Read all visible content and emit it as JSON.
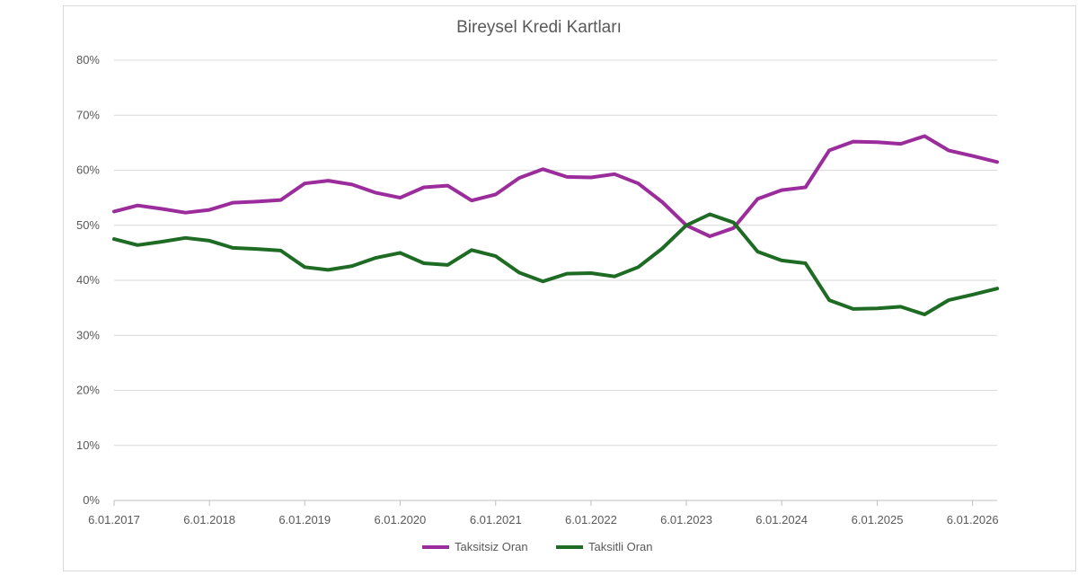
{
  "chart_data": {
    "type": "line",
    "title": "Bireysel Kredi Kartları",
    "xlabel": "",
    "ylabel": "",
    "ylim": [
      0,
      80
    ],
    "y_format": "percent",
    "y_ticks": [
      "0%",
      "10%",
      "20%",
      "30%",
      "40%",
      "50%",
      "60%",
      "70%",
      "80%"
    ],
    "x_range": [
      "2017-01-06",
      "2026-04-10"
    ],
    "x_ticks": [
      "6.01.2017",
      "6.01.2018",
      "6.01.2019",
      "6.01.2020",
      "6.01.2021",
      "6.01.2022",
      "6.01.2023",
      "6.01.2024",
      "6.01.2025",
      "6.01.2026"
    ],
    "grid": true,
    "legend_position": "bottom",
    "x": [
      "2017-01-06",
      "2017-04-06",
      "2017-07-06",
      "2017-10-06",
      "2018-01-06",
      "2018-04-06",
      "2018-07-06",
      "2018-10-06",
      "2019-01-06",
      "2019-04-06",
      "2019-07-06",
      "2019-10-06",
      "2020-01-06",
      "2020-04-06",
      "2020-07-06",
      "2020-10-06",
      "2021-01-06",
      "2021-04-06",
      "2021-07-06",
      "2021-10-06",
      "2022-01-06",
      "2022-04-06",
      "2022-07-06",
      "2022-10-06",
      "2023-01-06",
      "2023-04-06",
      "2023-07-06",
      "2023-10-06",
      "2024-01-06",
      "2024-04-06",
      "2024-07-06",
      "2024-10-06",
      "2025-01-06",
      "2025-04-06",
      "2025-07-06",
      "2025-10-06",
      "2026-01-06",
      "2026-04-10"
    ],
    "series": [
      {
        "name": "Taksitsiz Oran",
        "color": "#9b2c9b",
        "values": [
          52.5,
          53.6,
          53.0,
          52.3,
          52.8,
          54.1,
          54.3,
          54.6,
          57.6,
          58.1,
          57.4,
          55.9,
          55.0,
          56.9,
          57.2,
          54.5,
          55.6,
          58.6,
          60.2,
          58.8,
          58.7,
          59.3,
          57.6,
          54.2,
          50.0,
          48.0,
          49.5,
          54.8,
          56.4,
          56.9,
          63.6,
          65.2,
          65.1,
          64.8,
          66.2,
          63.6,
          62.6,
          61.5
        ]
      },
      {
        "name": "Taksitli Oran",
        "color": "#1e6b23",
        "values": [
          47.5,
          46.4,
          47.0,
          47.7,
          47.2,
          45.9,
          45.7,
          45.4,
          42.4,
          41.9,
          42.6,
          44.1,
          45.0,
          43.1,
          42.8,
          45.5,
          44.4,
          41.4,
          39.8,
          41.2,
          41.3,
          40.7,
          42.4,
          45.8,
          50.0,
          52.0,
          50.5,
          45.2,
          43.6,
          43.1,
          36.4,
          34.8,
          34.9,
          35.2,
          33.8,
          36.4,
          37.4,
          38.5
        ]
      }
    ]
  }
}
